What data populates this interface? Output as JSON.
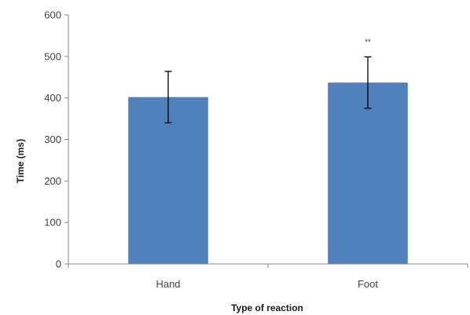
{
  "chart_data": {
    "type": "bar",
    "categories": [
      "Hand",
      "Foot"
    ],
    "values": [
      402,
      437
    ],
    "error": [
      62,
      62
    ],
    "annotations": [
      "",
      "**"
    ],
    "xlabel": "Type of reaction",
    "ylabel": "Time (ms)",
    "ylim": [
      0,
      600
    ],
    "yticks": [
      0,
      100,
      200,
      300,
      400,
      500,
      600
    ],
    "grid": false,
    "colors": {
      "bar": "#4f81bd",
      "axis": "#868686",
      "error": "#000000"
    }
  }
}
